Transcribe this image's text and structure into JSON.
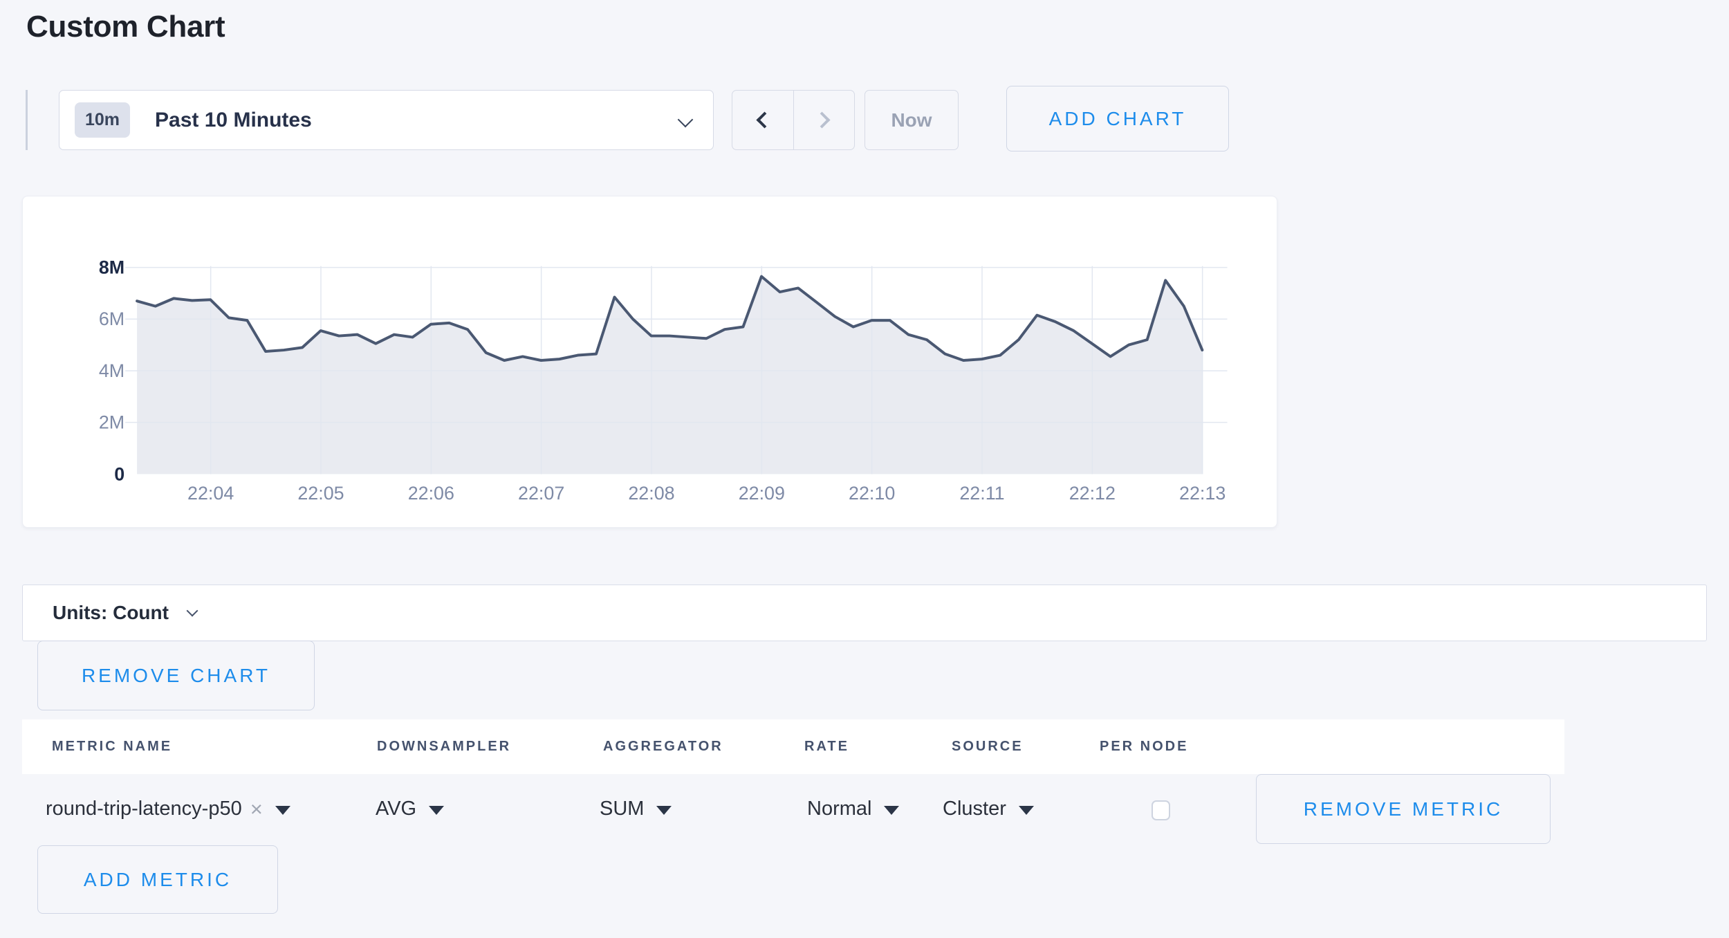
{
  "page": {
    "title": "Custom Chart"
  },
  "toolbar": {
    "time_badge": "10m",
    "time_label": "Past 10 Minutes",
    "now_label": "Now",
    "add_chart_label": "ADD CHART"
  },
  "chart_data": {
    "type": "area",
    "title": "",
    "xlabel": "",
    "ylabel": "count",
    "legend": "none",
    "grid": true,
    "ylim": [
      0,
      8000000
    ],
    "x_tick_labels": [
      "22:04",
      "22:05",
      "22:06",
      "22:07",
      "22:08",
      "22:09",
      "22:10",
      "22:11",
      "22:12",
      "22:13"
    ],
    "y_ticks": [
      {
        "value": 0,
        "label": "0",
        "strong": true
      },
      {
        "value": 2000000,
        "label": "2M",
        "strong": false
      },
      {
        "value": 4000000,
        "label": "4M",
        "strong": false
      },
      {
        "value": 6000000,
        "label": "6M",
        "strong": false
      },
      {
        "value": 8000000,
        "label": "8M",
        "strong": true
      }
    ],
    "line_color": "#4a5872",
    "fill_color": "#e9ebf1",
    "grid_color": "#e2e7f0",
    "axis_label_color": "#7e8aa6",
    "axis_strong_color": "#1d2a47",
    "series": [
      {
        "name": "round-trip-latency-p50",
        "start_time": "22:03:20",
        "interval_seconds": 10,
        "values": [
          6700000,
          6500000,
          6800000,
          6720000,
          6750000,
          6050000,
          5950000,
          4750000,
          4800000,
          4900000,
          5550000,
          5350000,
          5400000,
          5050000,
          5400000,
          5300000,
          5800000,
          5850000,
          5600000,
          4700000,
          4400000,
          4550000,
          4400000,
          4450000,
          4600000,
          4650000,
          6850000,
          6000000,
          5350000,
          5350000,
          5300000,
          5250000,
          5600000,
          5700000,
          7650000,
          7050000,
          7200000,
          6650000,
          6100000,
          5700000,
          5950000,
          5950000,
          5400000,
          5200000,
          4650000,
          4400000,
          4450000,
          4600000,
          5200000,
          6150000,
          5900000,
          5550000,
          5050000,
          4550000,
          5000000,
          5200000,
          7500000,
          6500000,
          4800000
        ]
      }
    ]
  },
  "units_bar": {
    "label": "Units: Count"
  },
  "chart_actions": {
    "remove_chart_label": "REMOVE CHART",
    "add_metric_label": "ADD METRIC"
  },
  "metrics_table": {
    "columns": [
      "METRIC NAME",
      "DOWNSAMPLER",
      "AGGREGATOR",
      "RATE",
      "SOURCE",
      "PER NODE"
    ],
    "rows": [
      {
        "metric_name": "round-trip-latency-p50",
        "downsampler": "AVG",
        "aggregator": "SUM",
        "rate": "Normal",
        "source": "Cluster",
        "per_node_checked": false,
        "remove_label": "REMOVE METRIC"
      }
    ]
  },
  "icons": {
    "clear_metric": "×"
  },
  "colors": {
    "accent_blue": "#1d8ceb",
    "page_background": "#f5f6fa",
    "card_background": "#ffffff",
    "border": "#d6dae6",
    "text_dark": "#232b3a",
    "text_muted": "#9aa2b4",
    "chart_line": "#4a5872",
    "chart_fill": "#e9ebf1"
  }
}
